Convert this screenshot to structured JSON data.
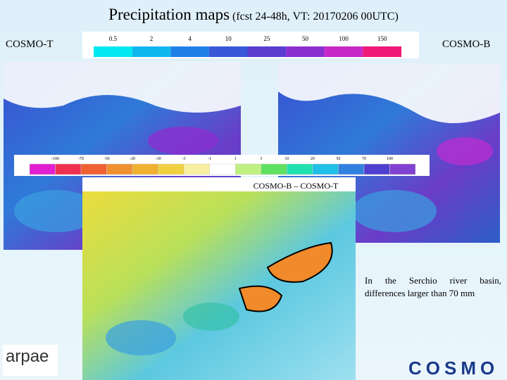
{
  "header": {
    "title": "Precipitation maps",
    "subtitle": "(fcst 24-48h, VT: 20170206 00UTC)"
  },
  "left_label": "COSMO-T",
  "right_label": "COSMO-B",
  "precip_colorbar": {
    "labels": [
      0.5,
      2,
      4,
      10,
      25,
      50,
      100,
      150
    ]
  },
  "diff_colorbar": {
    "labels": [
      -100,
      -70,
      -50,
      -20,
      -10,
      -3,
      -1,
      1,
      3,
      10,
      20,
      50,
      70,
      100
    ]
  },
  "diff_title": "COSMO-B – COSMO-T",
  "note": "In the Serchio river basin, differences larger than 70 mm",
  "logos": {
    "left": "arpae",
    "right": "COSMO"
  }
}
